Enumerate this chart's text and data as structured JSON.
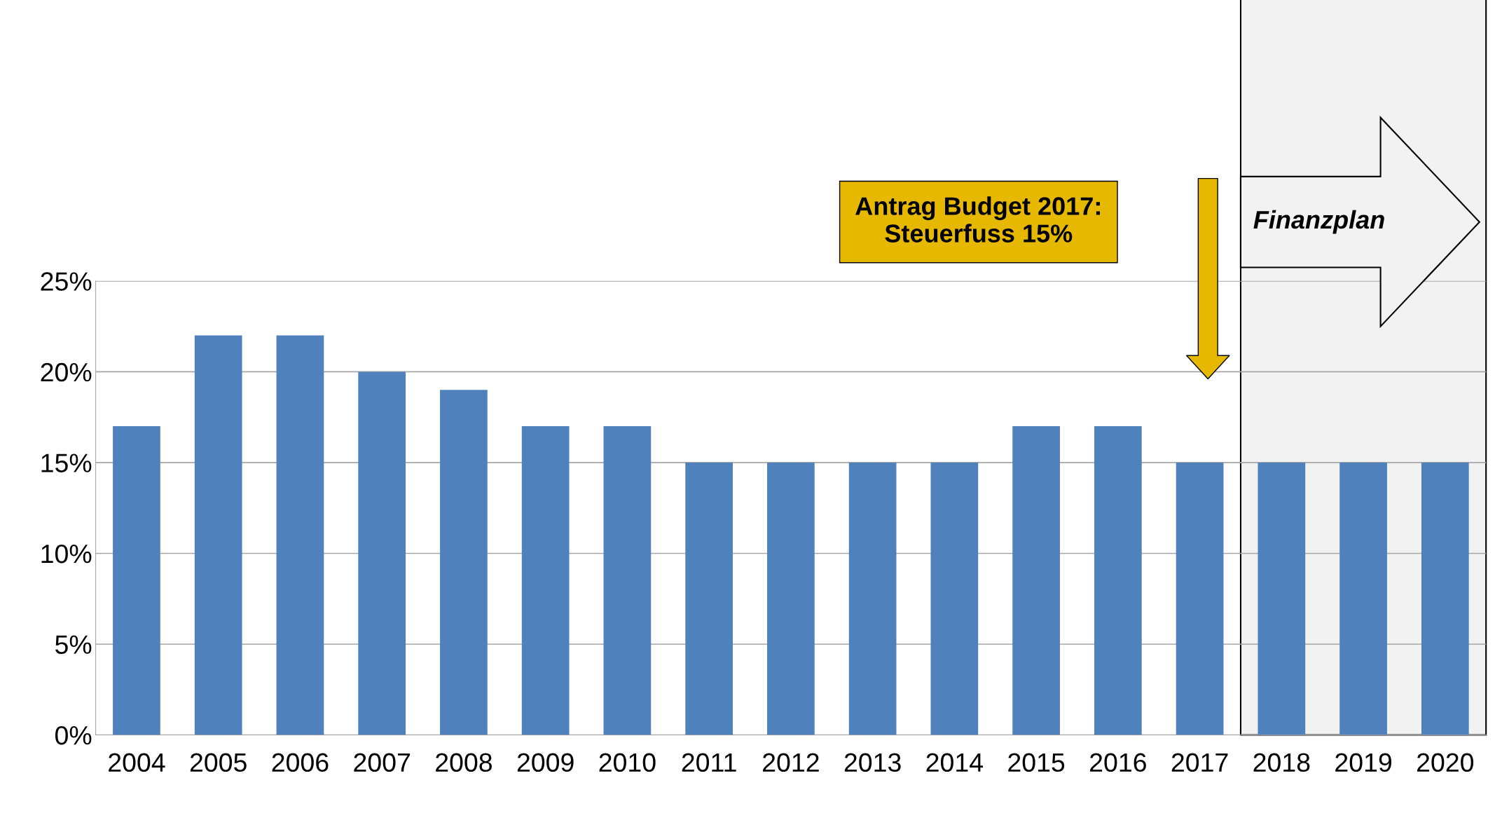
{
  "chart_data": {
    "type": "bar",
    "categories": [
      "2004",
      "2005",
      "2006",
      "2007",
      "2008",
      "2009",
      "2010",
      "2011",
      "2012",
      "2013",
      "2014",
      "2015",
      "2016",
      "2017",
      "2018",
      "2019",
      "2020"
    ],
    "values": [
      17,
      22,
      22,
      20,
      19,
      17,
      17,
      15,
      15,
      15,
      15,
      17,
      17,
      15,
      15,
      15,
      15
    ],
    "color": "#4f81bd",
    "ylim": [
      0,
      25
    ],
    "yticks": [
      {
        "value": 0,
        "label": "0%"
      },
      {
        "value": 5,
        "label": "5%"
      },
      {
        "value": 10,
        "label": "10%"
      },
      {
        "value": 15,
        "label": "15%"
      },
      {
        "value": 20,
        "label": "20%"
      },
      {
        "value": 25,
        "label": "25%"
      }
    ],
    "grid": "y",
    "annotations": [
      "Antrag Budget 2017:\nSteuerfuss 15%"
    ],
    "bands": [
      {
        "axis": "x",
        "from": "2018",
        "to": "2020",
        "label": "Finanzplan",
        "color": "#f2f2f2"
      }
    ]
  }
}
